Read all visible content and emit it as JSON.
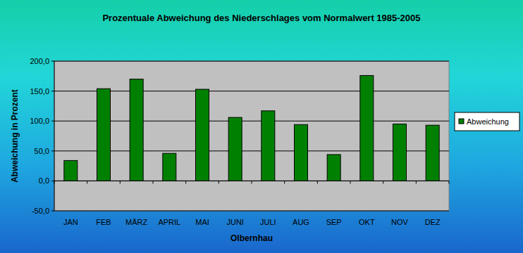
{
  "chart_data": {
    "type": "bar",
    "title": "Prozentuale Abweichung des Niederschlages vom Normalwert 1985-2005",
    "x_label": "Olbernhau",
    "y_label": "Abweichung in Prozent",
    "categories": [
      "JAN",
      "FEB",
      "MÄRZ",
      "APRIL",
      "MAI",
      "JUNI",
      "JULI",
      "AUG",
      "SEP",
      "OKT",
      "NOV",
      "DEZ"
    ],
    "series": [
      {
        "name": "Abweichung",
        "color": "#008000",
        "values": [
          34,
          154,
          170,
          46,
          153,
          106,
          117,
          94,
          44,
          176,
          95,
          93
        ]
      }
    ],
    "ylim": [
      -50,
      200
    ],
    "yticks": [
      {
        "value": -50,
        "label": "-50,0"
      },
      {
        "value": 0,
        "label": "0,0"
      },
      {
        "value": 50,
        "label": "50,0"
      },
      {
        "value": 100,
        "label": "100,0"
      },
      {
        "value": 150,
        "label": "150,0"
      },
      {
        "value": 200,
        "label": "200,0"
      }
    ],
    "grid": true,
    "legend": "right"
  }
}
